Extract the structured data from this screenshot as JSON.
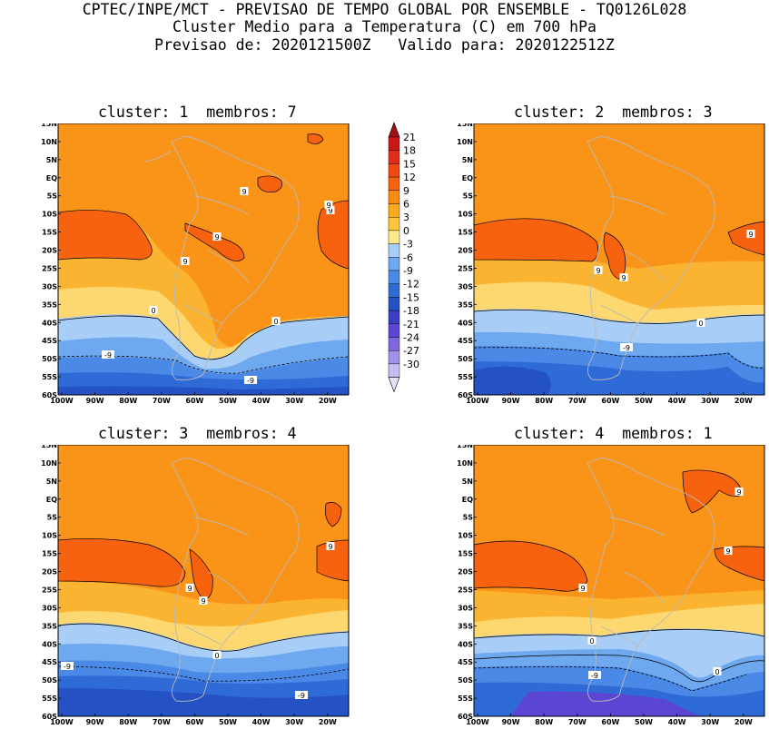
{
  "header": {
    "line1": "CPTEC/INPE/MCT - PREVISAO DE TEMPO GLOBAL POR ENSEMBLE - TQ0126L028",
    "line2": "Cluster Medio para a Temperatura (C) em 700 hPa",
    "line3": "Previsao de: 2020121500Z   Valido para: 2020122512Z"
  },
  "lat_ticks": [
    "15N",
    "10N",
    "5N",
    "EQ",
    "5S",
    "10S",
    "15S",
    "20S",
    "25S",
    "30S",
    "35S",
    "40S",
    "45S",
    "50S",
    "55S",
    "60S"
  ],
  "lon_ticks": [
    "100W",
    "90W",
    "80W",
    "70W",
    "60W",
    "50W",
    "40W",
    "30W",
    "20W"
  ],
  "colorbar": {
    "labels": [
      "21",
      "18",
      "15",
      "12",
      "9",
      "6",
      "3",
      "0",
      "-3",
      "-6",
      "-9",
      "-12",
      "-15",
      "-18",
      "-21",
      "-24",
      "-27",
      "-30"
    ],
    "colors": [
      "#a50f15",
      "#c8181a",
      "#e02c1a",
      "#f04a14",
      "#f7620f",
      "#fa8c12",
      "#fbab1e",
      "#fdc63e",
      "#fde88a",
      "#a8cdf7",
      "#6ea8ee",
      "#4a89e6",
      "#2f6bd6",
      "#2452c4",
      "#3a3fc2",
      "#5a46d2",
      "#8166de",
      "#a390e8",
      "#c7bef2",
      "#e6e1f9"
    ],
    "fill_map": {
      "ocean_hot": "#f7620f",
      "base": "#fa9418",
      "warm": "#fbb432",
      "mild": "#fdd870",
      "zero": "#fde88a",
      "c1": "#a8cdf7",
      "c2": "#6ea8ee",
      "c3": "#4a89e6",
      "c4": "#2f6bd6",
      "c5": "#2452c4",
      "c6": "#3a3fc2",
      "c7": "#5a46d2"
    }
  },
  "panels": [
    {
      "title": "cluster: 1  membros: 7",
      "labels": [
        {
          "t": "9"
        },
        {
          "t": "9"
        },
        {
          "t": "9"
        },
        {
          "t": "9"
        },
        {
          "t": "0"
        },
        {
          "t": "0"
        },
        {
          "t": "-9"
        },
        {
          "t": "-9"
        },
        {
          "t": "9"
        }
      ]
    },
    {
      "title": "cluster: 2  membros: 3",
      "labels": [
        {
          "t": "9"
        },
        {
          "t": "9"
        },
        {
          "t": "9"
        },
        {
          "t": "0"
        },
        {
          "t": "-9"
        }
      ]
    },
    {
      "title": "cluster: 3  membros: 4",
      "labels": [
        {
          "t": "9"
        },
        {
          "t": "9"
        },
        {
          "t": "9"
        },
        {
          "t": "0"
        },
        {
          "t": "-9"
        },
        {
          "t": "-9"
        }
      ]
    },
    {
      "title": "cluster: 4  membros: 1",
      "labels": [
        {
          "t": "9"
        },
        {
          "t": "9"
        },
        {
          "t": "9"
        },
        {
          "t": "0"
        },
        {
          "t": "0"
        },
        {
          "t": "-9"
        }
      ]
    }
  ]
}
